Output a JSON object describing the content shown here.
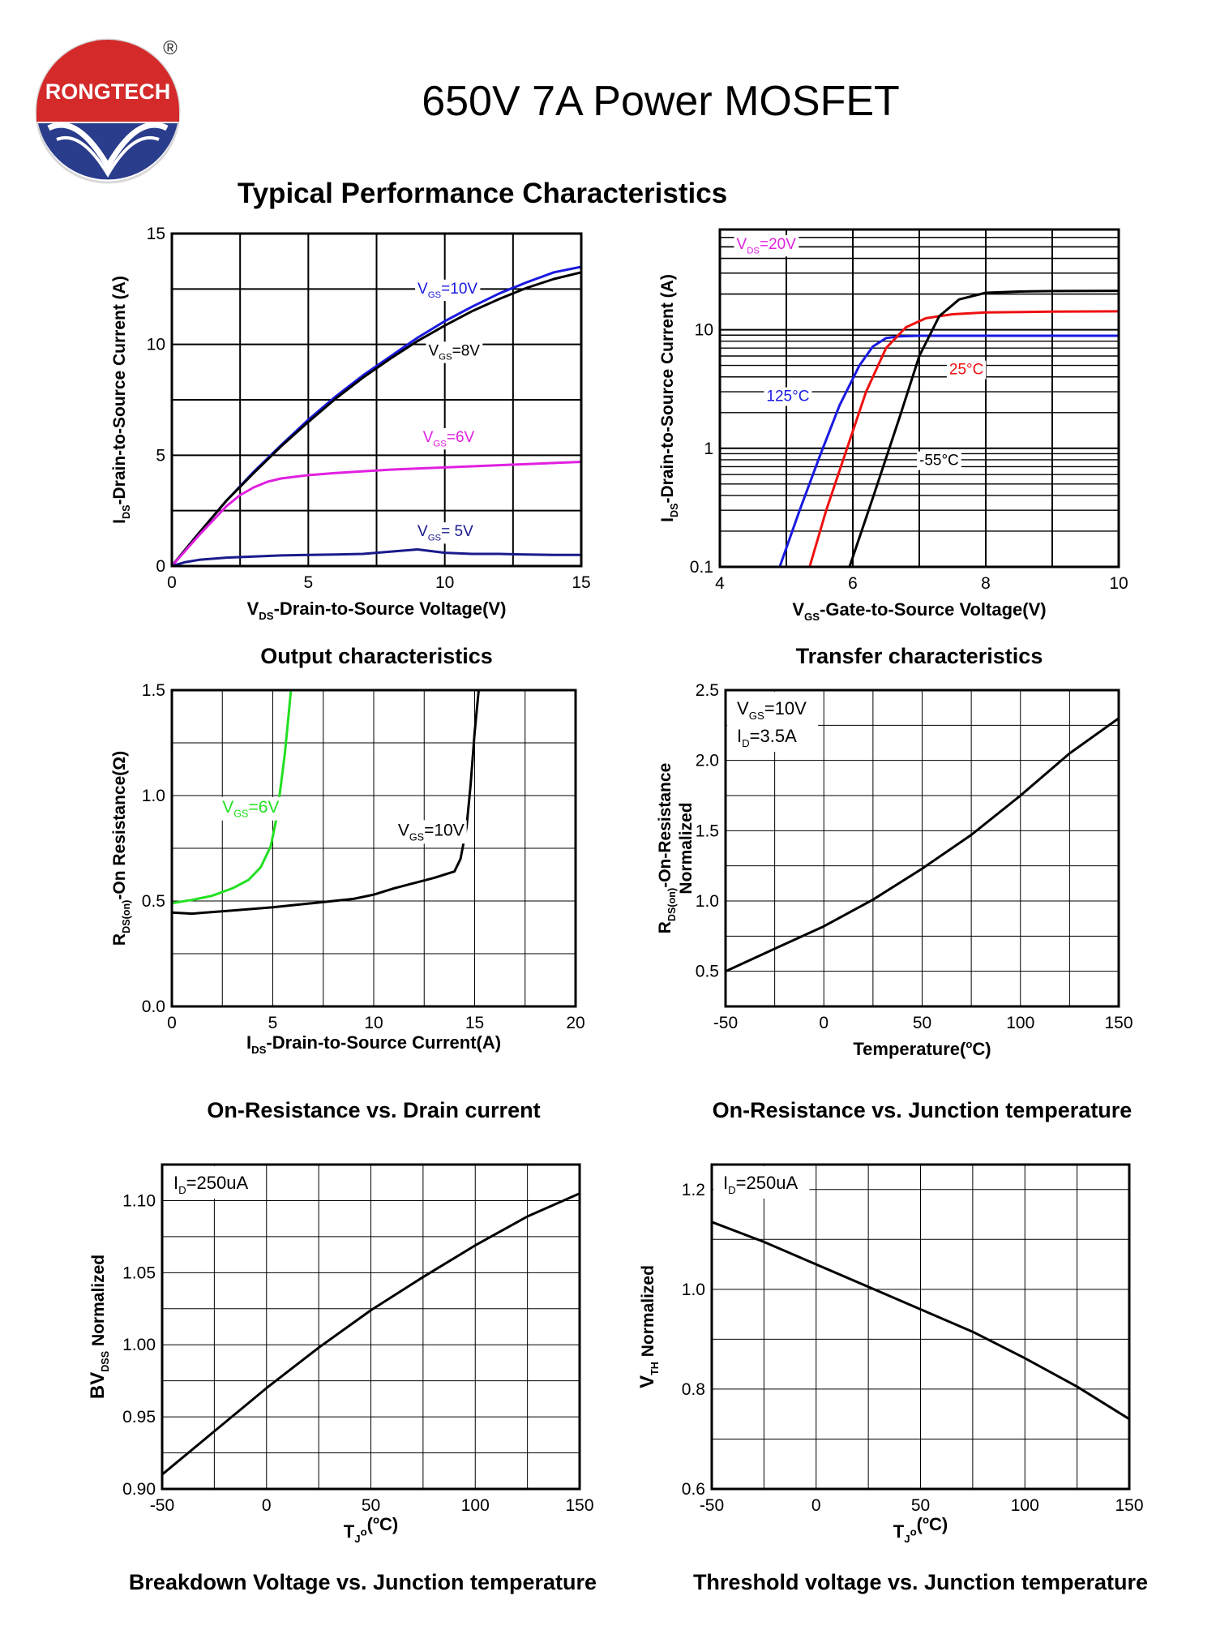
{
  "header": {
    "brand": "RONGTECH",
    "registered_mark": "®",
    "title": "650V 7A Power MOSFET",
    "section_title": "Typical Performance Characteristics"
  },
  "colors": {
    "blue": "#1a1ae0",
    "magenta": "#e020e0",
    "red": "#ee1111",
    "green": "#22e022",
    "navy": "#1a1a8c",
    "black": "#000000",
    "logo_red": "#d42a2a",
    "logo_blue": "#2a3c8c"
  },
  "chart_data": [
    {
      "id": "output",
      "type": "line",
      "caption": "Output characteristics",
      "xlabel": {
        "main": "V",
        "sub": "DS",
        "rest": "-Drain-to-Source Voltage(V)"
      },
      "ylabel": {
        "main": "I",
        "sub": "DS",
        "rest": "-Drain-to-Source Current (A)"
      },
      "xlim": [
        0,
        15
      ],
      "ylim": [
        0,
        15
      ],
      "xticks": [
        0,
        5,
        10,
        15
      ],
      "yticks": [
        0,
        5,
        10,
        15
      ],
      "tick_labels_x": [
        "0",
        "5",
        "10",
        "15"
      ],
      "tick_labels_y": [
        "0",
        "5",
        "10",
        "15"
      ],
      "grid": {
        "x_step": 2.5,
        "y_step": 2.5
      },
      "series": [
        {
          "name": "VGS=10V",
          "label": {
            "main": "V",
            "sub": "GS",
            "rest": "=10V"
          },
          "color": "#1a1ae0",
          "x": [
            0,
            0.5,
            1,
            2,
            3,
            4,
            5,
            6,
            7,
            8,
            9,
            10,
            11,
            12,
            13,
            14,
            15
          ],
          "y": [
            0,
            0.75,
            1.5,
            2.95,
            4.25,
            5.45,
            6.6,
            7.65,
            8.6,
            9.45,
            10.3,
            11.05,
            11.7,
            12.3,
            12.8,
            13.25,
            13.5
          ]
        },
        {
          "name": "VGS=8V",
          "label": {
            "main": "V",
            "sub": "GS",
            "rest": "=8V"
          },
          "color": "#000000",
          "x": [
            0,
            0.5,
            1,
            2,
            3,
            4,
            5,
            6,
            7,
            8,
            9,
            10,
            11,
            12,
            13,
            14,
            15
          ],
          "y": [
            0,
            0.75,
            1.5,
            2.95,
            4.2,
            5.4,
            6.5,
            7.55,
            8.5,
            9.35,
            10.15,
            10.85,
            11.5,
            12.05,
            12.55,
            12.95,
            13.25
          ]
        },
        {
          "name": "VGS=6V",
          "label": {
            "main": "V",
            "sub": "GS",
            "rest": "=6V"
          },
          "color": "#e020e0",
          "x": [
            0,
            0.5,
            1,
            1.5,
            2,
            2.5,
            3,
            3.5,
            4,
            5,
            6,
            8,
            10,
            12,
            15
          ],
          "y": [
            0,
            0.7,
            1.4,
            2.05,
            2.7,
            3.2,
            3.55,
            3.8,
            3.95,
            4.1,
            4.2,
            4.35,
            4.45,
            4.55,
            4.7
          ]
        },
        {
          "name": "VGS=5V",
          "label": {
            "main": "V",
            "sub": "GS",
            "rest": "= 5V"
          },
          "color": "#1a1a8c",
          "x": [
            0,
            0.5,
            1,
            2,
            3,
            4,
            5,
            6,
            7,
            8,
            9,
            10,
            11,
            12,
            13,
            14,
            15
          ],
          "y": [
            0,
            0.18,
            0.28,
            0.38,
            0.43,
            0.48,
            0.5,
            0.52,
            0.55,
            0.65,
            0.75,
            0.6,
            0.55,
            0.55,
            0.52,
            0.5,
            0.5
          ]
        }
      ]
    },
    {
      "id": "transfer",
      "type": "line",
      "yscale": "log",
      "caption": "Transfer characteristics",
      "xlabel": {
        "main": "V",
        "sub": "GS",
        "rest": "-Gate-to-Source Voltage(V)"
      },
      "ylabel": {
        "main": "I",
        "sub": "DS",
        "rest": "-Drain-to-Source Current (A)"
      },
      "xlim": [
        4,
        10
      ],
      "ylim": [
        0.1,
        70
      ],
      "xticks": [
        4,
        6,
        8,
        10
      ],
      "yticks": [
        0.1,
        1,
        10
      ],
      "tick_labels_x": [
        "4",
        "6",
        "8",
        "10"
      ],
      "tick_labels_y": [
        "0.1",
        "1",
        "10"
      ],
      "annotation": {
        "main": "V",
        "sub": "DS",
        "rest": "=20V",
        "color": "#e020e0"
      },
      "series": [
        {
          "name": "125°C",
          "label": "125°C",
          "color": "#1a1ae0",
          "x": [
            4.9,
            5.2,
            5.5,
            5.8,
            6.1,
            6.3,
            6.5,
            6.7,
            7,
            8,
            10
          ],
          "y": [
            0.1,
            0.3,
            0.85,
            2.3,
            5.0,
            7.2,
            8.5,
            8.8,
            8.9,
            8.9,
            8.9
          ]
        },
        {
          "name": "25°C",
          "label": "25°C",
          "color": "#ee1111",
          "x": [
            5.35,
            5.6,
            5.9,
            6.2,
            6.5,
            6.8,
            7.1,
            7.5,
            8,
            9,
            10
          ],
          "y": [
            0.1,
            0.3,
            0.95,
            3.0,
            7.0,
            10.5,
            12.5,
            13.5,
            14,
            14.2,
            14.3
          ]
        },
        {
          "name": "-55°C",
          "label": "-55°C",
          "color": "#000000",
          "x": [
            5.95,
            6.3,
            6.7,
            7.0,
            7.3,
            7.6,
            8.0,
            8.5,
            9,
            10
          ],
          "y": [
            0.1,
            0.38,
            1.8,
            6.0,
            13.0,
            18.0,
            20.5,
            21.0,
            21.2,
            21.3
          ]
        }
      ]
    },
    {
      "id": "rds_vs_id",
      "type": "line",
      "caption": "On-Resistance vs. Drain current",
      "xlabel": {
        "main": "I",
        "sub": "DS",
        "rest": "-Drain-to-Source Current(A)"
      },
      "ylabel": {
        "main": "R",
        "sub": "DS(on)",
        "rest": "-On Resistance(Ω)"
      },
      "xlim": [
        0,
        20
      ],
      "ylim": [
        0,
        1.5
      ],
      "xticks": [
        0,
        5,
        10,
        15,
        20
      ],
      "yticks": [
        0,
        0.5,
        1.0,
        1.5
      ],
      "tick_labels_x": [
        "0",
        "5",
        "10",
        "15",
        "20"
      ],
      "tick_labels_y": [
        "0.0",
        "0.5",
        "1.0",
        "1.5"
      ],
      "grid": {
        "x_step": 2.5,
        "y_step": 0.25
      },
      "series": [
        {
          "name": "VGS=6V",
          "label": {
            "main": "V",
            "sub": "GS",
            "rest": "=6V"
          },
          "color": "#22e022",
          "x": [
            0,
            1,
            2,
            3,
            3.8,
            4.4,
            4.9,
            5.2,
            5.4,
            5.6,
            5.75,
            5.9
          ],
          "y": [
            0.49,
            0.505,
            0.525,
            0.56,
            0.6,
            0.66,
            0.76,
            0.9,
            1.05,
            1.2,
            1.35,
            1.5
          ]
        },
        {
          "name": "VGS=10V",
          "label": {
            "main": "V",
            "sub": "GS",
            "rest": "=10V"
          },
          "color": "#000000",
          "x": [
            0,
            1,
            3,
            5,
            7,
            9,
            10,
            11,
            12,
            13,
            14,
            14.3,
            14.6,
            14.8,
            15.0,
            15.2
          ],
          "y": [
            0.445,
            0.44,
            0.455,
            0.47,
            0.49,
            0.51,
            0.53,
            0.56,
            0.585,
            0.61,
            0.64,
            0.7,
            0.85,
            1.05,
            1.3,
            1.5
          ]
        }
      ]
    },
    {
      "id": "rds_vs_temp",
      "type": "line",
      "caption": "On-Resistance vs. Junction temperature",
      "xlabel": {
        "main": "Temperature(",
        "sup": "o",
        "rest": "C)"
      },
      "ylabel": {
        "main": "R",
        "sub": "DS(on)",
        "rest": "-On-Resistance",
        "line2": "Normalized"
      },
      "xlim": [
        -50,
        150
      ],
      "ylim": [
        0.25,
        2.5
      ],
      "xticks": [
        -50,
        0,
        50,
        100,
        150
      ],
      "yticks": [
        0.5,
        1.0,
        1.5,
        2.0,
        2.5
      ],
      "tick_labels_x": [
        "-50",
        "0",
        "50",
        "100",
        "150"
      ],
      "tick_labels_y": [
        "0.5",
        "1.0",
        "1.5",
        "2.0",
        "2.5"
      ],
      "grid": {
        "x_step": 25,
        "y_step": 0.25
      },
      "legend_lines": [
        {
          "main": "V",
          "sub": "GS",
          "rest": "=10V"
        },
        {
          "main": "I",
          "sub": "D",
          "rest": "=3.5A"
        }
      ],
      "series": [
        {
          "name": "RDS(on)",
          "color": "#000000",
          "x": [
            -50,
            -25,
            0,
            25,
            50,
            75,
            100,
            125,
            150
          ],
          "y": [
            0.5,
            0.66,
            0.82,
            1.01,
            1.23,
            1.47,
            1.75,
            2.05,
            2.3
          ]
        }
      ]
    },
    {
      "id": "bvdss_vs_temp",
      "type": "line",
      "caption": "Breakdown Voltage vs. Junction temperature",
      "xlabel": {
        "main": "T",
        "sub": "J",
        "rest": "(",
        "sup": "o",
        "rest2": "C)"
      },
      "ylabel": {
        "main": "BV",
        "sub": "DSS",
        "rest": " Normalized"
      },
      "xlim": [
        -50,
        150
      ],
      "ylim": [
        0.9,
        1.125
      ],
      "xticks": [
        -50,
        0,
        50,
        100,
        150
      ],
      "yticks": [
        0.9,
        0.95,
        1.0,
        1.05,
        1.1
      ],
      "tick_labels_x": [
        "-50",
        "0",
        "50",
        "100",
        "150"
      ],
      "tick_labels_y": [
        "0.90",
        "0.95",
        "1.00",
        "1.05",
        "1.10"
      ],
      "grid": {
        "x_step": 25,
        "y_step": 0.025
      },
      "legend_lines": [
        {
          "main": "I",
          "sub": "D",
          "rest": "=250uA"
        }
      ],
      "series": [
        {
          "name": "BVDSS",
          "color": "#000000",
          "x": [
            -50,
            -25,
            0,
            25,
            50,
            75,
            100,
            125,
            150
          ],
          "y": [
            0.91,
            0.94,
            0.97,
            0.998,
            1.024,
            1.047,
            1.069,
            1.089,
            1.105
          ]
        }
      ]
    },
    {
      "id": "vth_vs_temp",
      "type": "line",
      "caption": "Threshold voltage vs. Junction temperature",
      "xlabel": {
        "main": "T",
        "sub": "J",
        "rest": "(",
        "sup": "o",
        "rest2": "C)"
      },
      "ylabel": {
        "main": "V",
        "sub": "TH",
        "rest": " Normalized"
      },
      "xlim": [
        -50,
        150
      ],
      "ylim": [
        0.6,
        1.25
      ],
      "xticks": [
        -50,
        0,
        50,
        100,
        150
      ],
      "yticks": [
        0.6,
        0.8,
        1.0,
        1.2
      ],
      "tick_labels_x": [
        "-50",
        "0",
        "50",
        "100",
        "150"
      ],
      "tick_labels_y": [
        "0.6",
        "0.8",
        "1.0",
        "1.2"
      ],
      "grid": {
        "x_step": 25,
        "y_step": 0.1
      },
      "legend_lines": [
        {
          "main": "I",
          "sub": "D",
          "rest": "=250uA"
        }
      ],
      "series": [
        {
          "name": "VTH",
          "color": "#000000",
          "x": [
            -50,
            -25,
            0,
            25,
            50,
            75,
            100,
            125,
            150
          ],
          "y": [
            1.135,
            1.095,
            1.05,
            1.005,
            0.96,
            0.915,
            0.862,
            0.805,
            0.74
          ]
        }
      ]
    }
  ]
}
